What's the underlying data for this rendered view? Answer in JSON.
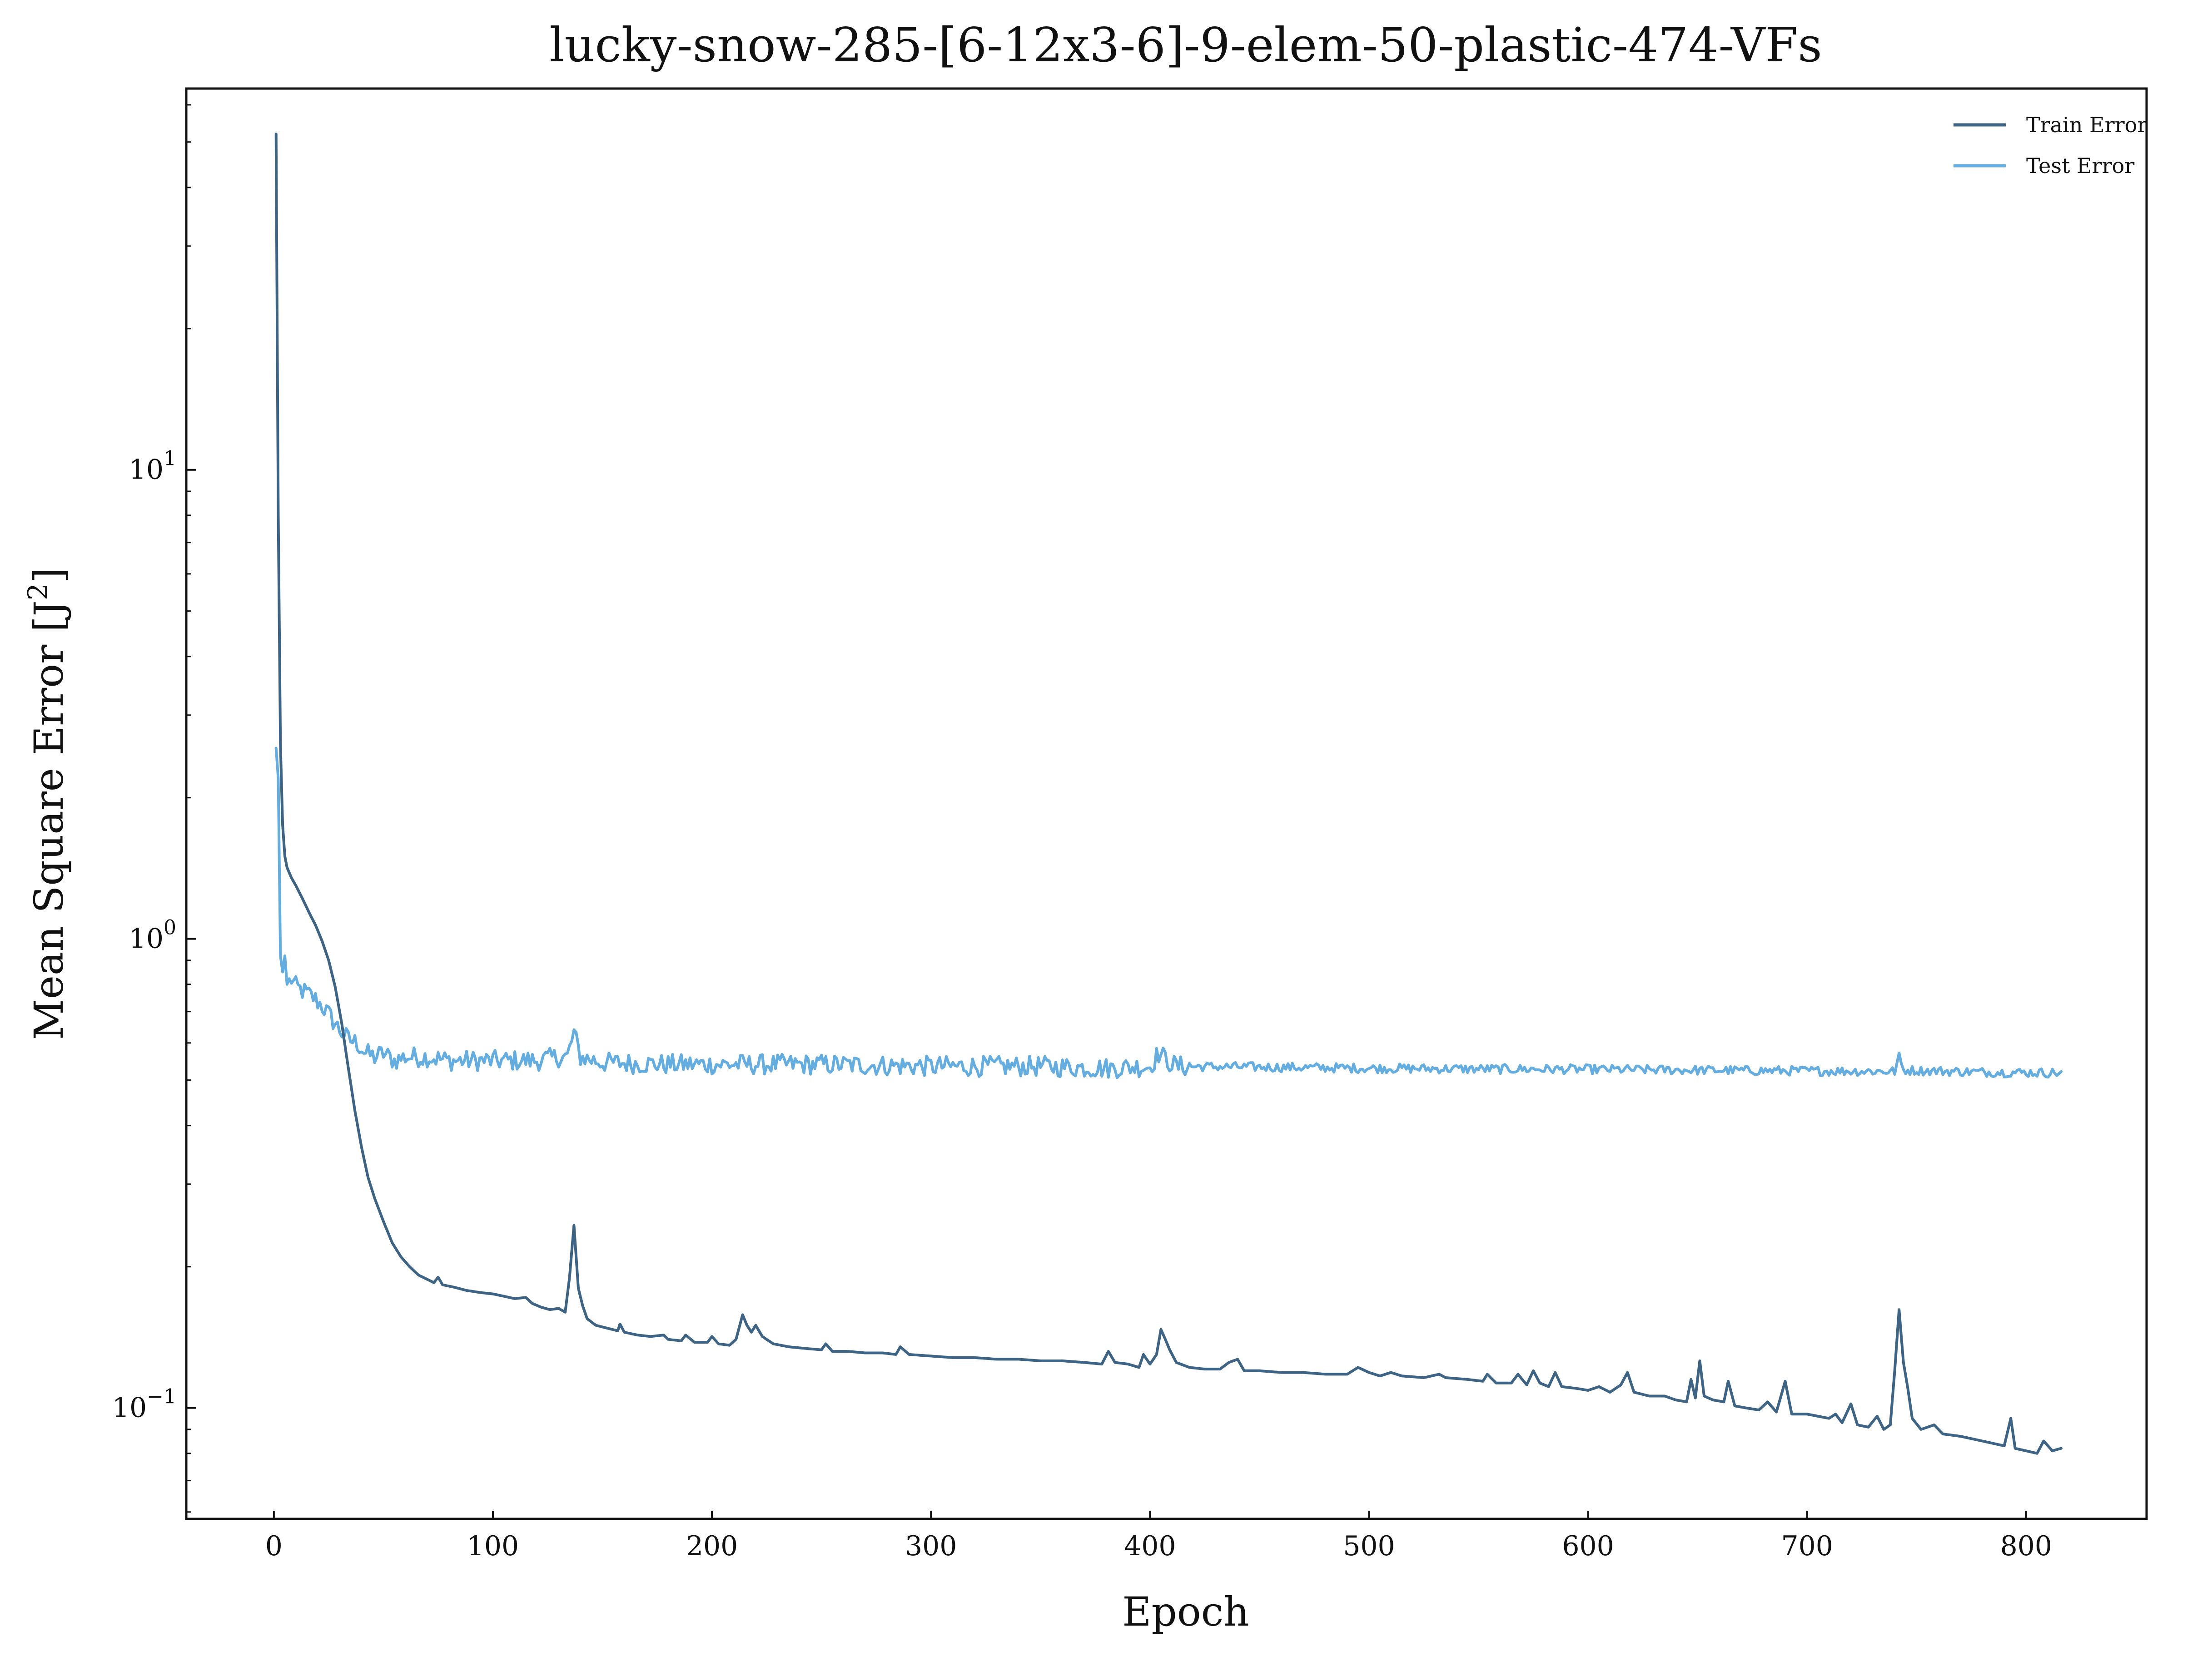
{
  "chart_data": {
    "type": "line",
    "title": "lucky-snow-285-[6-12x3-6]-9-elem-50-plastic-474-VFs",
    "xlabel": "Epoch",
    "ylabel": "Mean Square Error [J",
    "ylabel_sup": "2",
    "ylabel_end": "]",
    "yscale": "log",
    "xlim": [
      -40,
      855
    ],
    "ylim": [
      0.058,
      65
    ],
    "x_ticks": [
      {
        "value": 0,
        "label": "0"
      },
      {
        "value": 100,
        "label": "100"
      },
      {
        "value": 200,
        "label": "200"
      },
      {
        "value": 300,
        "label": "300"
      },
      {
        "value": 400,
        "label": "400"
      },
      {
        "value": 500,
        "label": "500"
      },
      {
        "value": 600,
        "label": "600"
      },
      {
        "value": 700,
        "label": "700"
      },
      {
        "value": 800,
        "label": "800"
      }
    ],
    "y_ticks": [
      {
        "value": 0.1,
        "base": "10",
        "exp": "−1"
      },
      {
        "value": 1,
        "base": "10",
        "exp": "0"
      },
      {
        "value": 10,
        "base": "10",
        "exp": "1"
      }
    ],
    "legend_position": "top-right",
    "grid": false,
    "series": [
      {
        "name": "Train Error",
        "color": "#3d6485",
        "points": [
          [
            1,
            52
          ],
          [
            2,
            8
          ],
          [
            3,
            2.6
          ],
          [
            4,
            1.75
          ],
          [
            5,
            1.5
          ],
          [
            6,
            1.42
          ],
          [
            8,
            1.35
          ],
          [
            10,
            1.3
          ],
          [
            13,
            1.22
          ],
          [
            16,
            1.14
          ],
          [
            19,
            1.07
          ],
          [
            22,
            0.99
          ],
          [
            25,
            0.9
          ],
          [
            28,
            0.79
          ],
          [
            31,
            0.66
          ],
          [
            34,
            0.53
          ],
          [
            37,
            0.43
          ],
          [
            40,
            0.36
          ],
          [
            43,
            0.31
          ],
          [
            46,
            0.28
          ],
          [
            50,
            0.25
          ],
          [
            54,
            0.225
          ],
          [
            58,
            0.21
          ],
          [
            62,
            0.2
          ],
          [
            66,
            0.192
          ],
          [
            70,
            0.188
          ],
          [
            73,
            0.185
          ],
          [
            75,
            0.19
          ],
          [
            77,
            0.183
          ],
          [
            82,
            0.181
          ],
          [
            88,
            0.178
          ],
          [
            95,
            0.176
          ],
          [
            100,
            0.175
          ],
          [
            105,
            0.173
          ],
          [
            110,
            0.171
          ],
          [
            115,
            0.172
          ],
          [
            118,
            0.167
          ],
          [
            122,
            0.164
          ],
          [
            126,
            0.162
          ],
          [
            130,
            0.163
          ],
          [
            133,
            0.16
          ],
          [
            135,
            0.19
          ],
          [
            137,
            0.245
          ],
          [
            139,
            0.18
          ],
          [
            141,
            0.165
          ],
          [
            143,
            0.155
          ],
          [
            147,
            0.15
          ],
          [
            152,
            0.148
          ],
          [
            157,
            0.146
          ],
          [
            158,
            0.151
          ],
          [
            160,
            0.145
          ],
          [
            166,
            0.143
          ],
          [
            172,
            0.142
          ],
          [
            178,
            0.143
          ],
          [
            180,
            0.14
          ],
          [
            186,
            0.139
          ],
          [
            188,
            0.143
          ],
          [
            192,
            0.138
          ],
          [
            198,
            0.138
          ],
          [
            200,
            0.142
          ],
          [
            203,
            0.137
          ],
          [
            208,
            0.136
          ],
          [
            211,
            0.14
          ],
          [
            214,
            0.158
          ],
          [
            216,
            0.15
          ],
          [
            218,
            0.145
          ],
          [
            220,
            0.15
          ],
          [
            223,
            0.142
          ],
          [
            228,
            0.137
          ],
          [
            235,
            0.135
          ],
          [
            242,
            0.134
          ],
          [
            250,
            0.133
          ],
          [
            252,
            0.137
          ],
          [
            255,
            0.132
          ],
          [
            262,
            0.132
          ],
          [
            270,
            0.131
          ],
          [
            278,
            0.131
          ],
          [
            284,
            0.13
          ],
          [
            286,
            0.135
          ],
          [
            290,
            0.13
          ],
          [
            300,
            0.129
          ],
          [
            310,
            0.128
          ],
          [
            320,
            0.128
          ],
          [
            330,
            0.127
          ],
          [
            340,
            0.127
          ],
          [
            350,
            0.126
          ],
          [
            360,
            0.126
          ],
          [
            370,
            0.125
          ],
          [
            378,
            0.124
          ],
          [
            381,
            0.132
          ],
          [
            384,
            0.125
          ],
          [
            390,
            0.124
          ],
          [
            395,
            0.122
          ],
          [
            397,
            0.13
          ],
          [
            400,
            0.124
          ],
          [
            403,
            0.13
          ],
          [
            405,
            0.147
          ],
          [
            407,
            0.14
          ],
          [
            409,
            0.133
          ],
          [
            412,
            0.125
          ],
          [
            418,
            0.122
          ],
          [
            425,
            0.121
          ],
          [
            432,
            0.121
          ],
          [
            436,
            0.125
          ],
          [
            440,
            0.127
          ],
          [
            443,
            0.12
          ],
          [
            450,
            0.12
          ],
          [
            460,
            0.119
          ],
          [
            470,
            0.119
          ],
          [
            480,
            0.118
          ],
          [
            490,
            0.118
          ],
          [
            495,
            0.122
          ],
          [
            500,
            0.119
          ],
          [
            505,
            0.117
          ],
          [
            510,
            0.119
          ],
          [
            515,
            0.117
          ],
          [
            525,
            0.116
          ],
          [
            532,
            0.118
          ],
          [
            535,
            0.116
          ],
          [
            545,
            0.115
          ],
          [
            552,
            0.114
          ],
          [
            554,
            0.118
          ],
          [
            558,
            0.113
          ],
          [
            565,
            0.113
          ],
          [
            568,
            0.118
          ],
          [
            572,
            0.112
          ],
          [
            575,
            0.12
          ],
          [
            578,
            0.113
          ],
          [
            582,
            0.111
          ],
          [
            585,
            0.119
          ],
          [
            588,
            0.111
          ],
          [
            595,
            0.11
          ],
          [
            600,
            0.109
          ],
          [
            605,
            0.111
          ],
          [
            610,
            0.108
          ],
          [
            615,
            0.112
          ],
          [
            618,
            0.119
          ],
          [
            621,
            0.108
          ],
          [
            628,
            0.106
          ],
          [
            635,
            0.106
          ],
          [
            640,
            0.104
          ],
          [
            645,
            0.103
          ],
          [
            647,
            0.115
          ],
          [
            649,
            0.105
          ],
          [
            651,
            0.126
          ],
          [
            653,
            0.106
          ],
          [
            657,
            0.104
          ],
          [
            662,
            0.103
          ],
          [
            664,
            0.114
          ],
          [
            667,
            0.101
          ],
          [
            672,
            0.1
          ],
          [
            678,
            0.099
          ],
          [
            682,
            0.103
          ],
          [
            686,
            0.098
          ],
          [
            690,
            0.114
          ],
          [
            693,
            0.097
          ],
          [
            700,
            0.097
          ],
          [
            705,
            0.096
          ],
          [
            710,
            0.095
          ],
          [
            713,
            0.097
          ],
          [
            716,
            0.093
          ],
          [
            720,
            0.102
          ],
          [
            723,
            0.092
          ],
          [
            728,
            0.091
          ],
          [
            732,
            0.096
          ],
          [
            735,
            0.09
          ],
          [
            738,
            0.092
          ],
          [
            740,
            0.12
          ],
          [
            742,
            0.162
          ],
          [
            744,
            0.125
          ],
          [
            746,
            0.11
          ],
          [
            748,
            0.095
          ],
          [
            752,
            0.09
          ],
          [
            758,
            0.092
          ],
          [
            762,
            0.088
          ],
          [
            770,
            0.087
          ],
          [
            775,
            0.086
          ],
          [
            780,
            0.085
          ],
          [
            785,
            0.084
          ],
          [
            790,
            0.083
          ],
          [
            793,
            0.095
          ],
          [
            795,
            0.082
          ],
          [
            800,
            0.081
          ],
          [
            805,
            0.08
          ],
          [
            808,
            0.085
          ],
          [
            812,
            0.081
          ],
          [
            816,
            0.082
          ]
        ]
      },
      {
        "name": "Test Error",
        "color": "#63ade1",
        "noise_amplitude": 0.022,
        "points": [
          [
            1,
            2.55
          ],
          [
            2,
            2.2
          ],
          [
            3,
            0.92
          ],
          [
            4,
            0.85
          ],
          [
            5,
            0.92
          ],
          [
            6,
            0.8
          ],
          [
            8,
            0.82
          ],
          [
            10,
            0.79
          ],
          [
            14,
            0.77
          ],
          [
            18,
            0.75
          ],
          [
            22,
            0.72
          ],
          [
            26,
            0.68
          ],
          [
            30,
            0.64
          ],
          [
            34,
            0.61
          ],
          [
            38,
            0.6
          ],
          [
            42,
            0.57
          ],
          [
            46,
            0.56
          ],
          [
            50,
            0.57
          ],
          [
            55,
            0.55
          ],
          [
            60,
            0.56
          ],
          [
            70,
            0.56
          ],
          [
            80,
            0.55
          ],
          [
            100,
            0.55
          ],
          [
            120,
            0.55
          ],
          [
            130,
            0.56
          ],
          [
            134,
            0.56
          ],
          [
            137,
            0.63
          ],
          [
            140,
            0.56
          ],
          [
            150,
            0.545
          ],
          [
            180,
            0.54
          ],
          [
            215,
            0.54
          ],
          [
            250,
            0.54
          ],
          [
            300,
            0.535
          ],
          [
            350,
            0.535
          ],
          [
            380,
            0.53
          ],
          [
            400,
            0.535
          ],
          [
            404,
            0.57
          ],
          [
            408,
            0.55
          ],
          [
            412,
            0.535
          ],
          [
            450,
            0.533
          ],
          [
            500,
            0.53
          ],
          [
            550,
            0.528
          ],
          [
            600,
            0.527
          ],
          [
            650,
            0.525
          ],
          [
            700,
            0.523
          ],
          [
            740,
            0.522
          ],
          [
            742,
            0.56
          ],
          [
            744,
            0.525
          ],
          [
            780,
            0.52
          ],
          [
            816,
            0.518
          ]
        ]
      }
    ]
  }
}
